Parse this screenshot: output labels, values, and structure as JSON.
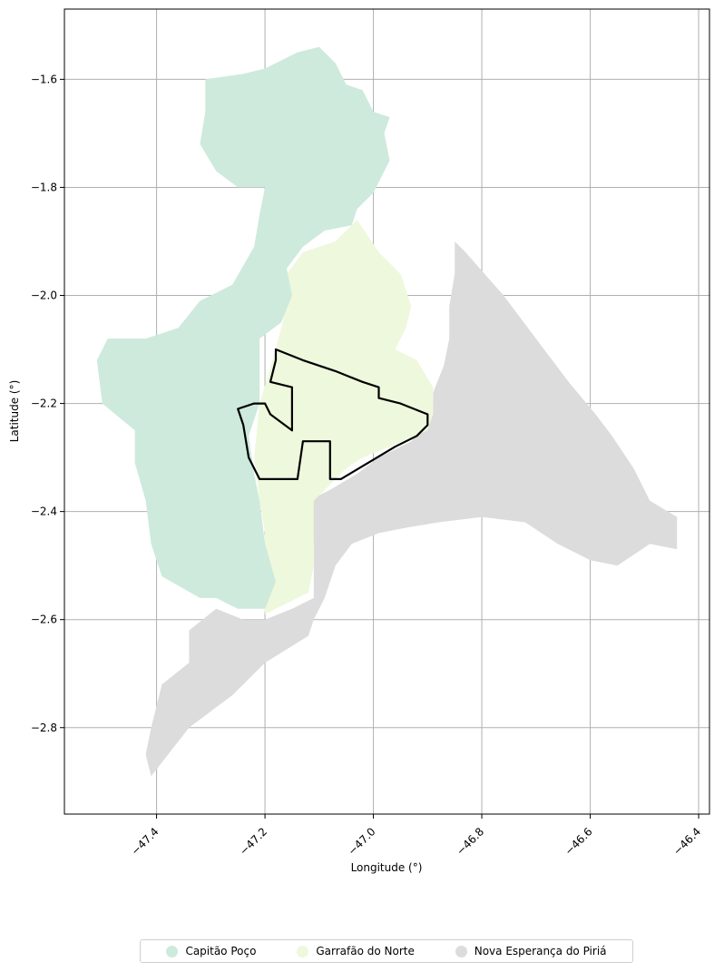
{
  "chart_data": {
    "type": "map",
    "xlabel": "Longitude (°)",
    "ylabel": "Latitude (°)",
    "xlim": [
      -47.57,
      -46.38
    ],
    "ylim": [
      -2.96,
      -1.47
    ],
    "xticks": [
      -47.4,
      -47.2,
      -47.0,
      -46.8,
      -46.6,
      -46.4
    ],
    "xtick_labels": [
      "−47.4",
      "−47.2",
      "−47.0",
      "−46.8",
      "−46.6",
      "−46.4"
    ],
    "yticks": [
      -1.6,
      -1.8,
      -2.0,
      -2.2,
      -2.4,
      -2.6,
      -2.8
    ],
    "ytick_labels": [
      "−1.6",
      "−1.8",
      "−2.0",
      "−2.2",
      "−2.4",
      "−2.6",
      "−2.8"
    ],
    "grid": true,
    "legend_position": "bottom-center",
    "regions": [
      {
        "name": "Capitão Poço",
        "color": "#cdeadd",
        "outline": [
          [
            -47.31,
            -1.6
          ],
          [
            -47.24,
            -1.59
          ],
          [
            -47.2,
            -1.58
          ],
          [
            -47.14,
            -1.55
          ],
          [
            -47.1,
            -1.54
          ],
          [
            -47.07,
            -1.57
          ],
          [
            -47.05,
            -1.61
          ],
          [
            -47.02,
            -1.62
          ],
          [
            -47.0,
            -1.66
          ],
          [
            -46.97,
            -1.67
          ],
          [
            -46.98,
            -1.7
          ],
          [
            -46.97,
            -1.75
          ],
          [
            -47.0,
            -1.81
          ],
          [
            -47.03,
            -1.84
          ],
          [
            -47.04,
            -1.87
          ],
          [
            -47.09,
            -1.88
          ],
          [
            -47.13,
            -1.91
          ],
          [
            -47.16,
            -1.95
          ],
          [
            -47.15,
            -2.0
          ],
          [
            -47.17,
            -2.05
          ],
          [
            -47.21,
            -2.08
          ],
          [
            -47.21,
            -2.2
          ],
          [
            -47.23,
            -2.26
          ],
          [
            -47.22,
            -2.33
          ],
          [
            -47.21,
            -2.38
          ],
          [
            -47.2,
            -2.46
          ],
          [
            -47.18,
            -2.53
          ],
          [
            -47.2,
            -2.58
          ],
          [
            -47.25,
            -2.58
          ],
          [
            -47.29,
            -2.56
          ],
          [
            -47.32,
            -2.56
          ],
          [
            -47.39,
            -2.52
          ],
          [
            -47.41,
            -2.46
          ],
          [
            -47.42,
            -2.38
          ],
          [
            -47.44,
            -2.31
          ],
          [
            -47.44,
            -2.25
          ],
          [
            -47.5,
            -2.2
          ],
          [
            -47.51,
            -2.12
          ],
          [
            -47.49,
            -2.08
          ],
          [
            -47.42,
            -2.08
          ],
          [
            -47.36,
            -2.06
          ],
          [
            -47.32,
            -2.01
          ],
          [
            -47.26,
            -1.98
          ],
          [
            -47.22,
            -1.91
          ],
          [
            -47.21,
            -1.85
          ],
          [
            -47.2,
            -1.8
          ],
          [
            -47.25,
            -1.8
          ],
          [
            -47.29,
            -1.77
          ],
          [
            -47.32,
            -1.72
          ],
          [
            -47.31,
            -1.66
          ]
        ]
      },
      {
        "name": "Garrafão do Norte",
        "color": "#eef8dc",
        "outline": [
          [
            -47.13,
            -1.92
          ],
          [
            -47.07,
            -1.9
          ],
          [
            -47.03,
            -1.86
          ],
          [
            -46.99,
            -1.92
          ],
          [
            -46.95,
            -1.96
          ],
          [
            -46.93,
            -2.02
          ],
          [
            -46.94,
            -2.06
          ],
          [
            -46.96,
            -2.1
          ],
          [
            -46.92,
            -2.12
          ],
          [
            -46.89,
            -2.17
          ],
          [
            -46.89,
            -2.22
          ],
          [
            -46.9,
            -2.25
          ],
          [
            -46.97,
            -2.28
          ],
          [
            -47.02,
            -2.3
          ],
          [
            -47.05,
            -2.32
          ],
          [
            -47.08,
            -2.35
          ],
          [
            -47.11,
            -2.38
          ],
          [
            -47.11,
            -2.44
          ],
          [
            -47.11,
            -2.5
          ],
          [
            -47.12,
            -2.55
          ],
          [
            -47.16,
            -2.57
          ],
          [
            -47.2,
            -2.59
          ],
          [
            -47.21,
            -2.5
          ],
          [
            -47.2,
            -2.44
          ],
          [
            -47.21,
            -2.38
          ],
          [
            -47.22,
            -2.3
          ],
          [
            -47.21,
            -2.2
          ],
          [
            -47.18,
            -2.1
          ],
          [
            -47.16,
            -2.02
          ],
          [
            -47.16,
            -1.96
          ]
        ]
      },
      {
        "name": "Nova Esperança do Piriá",
        "color": "#dcdcdc",
        "outline": [
          [
            -46.85,
            -1.9
          ],
          [
            -46.83,
            -1.92
          ],
          [
            -46.76,
            -2.0
          ],
          [
            -46.7,
            -2.08
          ],
          [
            -46.64,
            -2.16
          ],
          [
            -46.59,
            -2.22
          ],
          [
            -46.56,
            -2.26
          ],
          [
            -46.52,
            -2.32
          ],
          [
            -46.49,
            -2.38
          ],
          [
            -46.44,
            -2.41
          ],
          [
            -46.44,
            -2.47
          ],
          [
            -46.49,
            -2.46
          ],
          [
            -46.52,
            -2.48
          ],
          [
            -46.55,
            -2.5
          ],
          [
            -46.6,
            -2.49
          ],
          [
            -46.66,
            -2.46
          ],
          [
            -46.72,
            -2.42
          ],
          [
            -46.8,
            -2.41
          ],
          [
            -46.88,
            -2.42
          ],
          [
            -46.94,
            -2.43
          ],
          [
            -46.99,
            -2.44
          ],
          [
            -47.04,
            -2.46
          ],
          [
            -47.07,
            -2.5
          ],
          [
            -47.09,
            -2.56
          ],
          [
            -47.11,
            -2.6
          ],
          [
            -47.12,
            -2.63
          ],
          [
            -47.2,
            -2.68
          ],
          [
            -47.26,
            -2.74
          ],
          [
            -47.34,
            -2.8
          ],
          [
            -47.41,
            -2.89
          ],
          [
            -47.42,
            -2.85
          ],
          [
            -47.41,
            -2.8
          ],
          [
            -47.39,
            -2.72
          ],
          [
            -47.34,
            -2.68
          ],
          [
            -47.34,
            -2.62
          ],
          [
            -47.29,
            -2.58
          ],
          [
            -47.24,
            -2.6
          ],
          [
            -47.2,
            -2.6
          ],
          [
            -47.15,
            -2.58
          ],
          [
            -47.11,
            -2.56
          ],
          [
            -47.11,
            -2.46
          ],
          [
            -47.12,
            -2.38
          ],
          [
            -47.08,
            -2.36
          ],
          [
            -47.03,
            -2.33
          ],
          [
            -46.99,
            -2.3
          ],
          [
            -46.93,
            -2.27
          ],
          [
            -46.89,
            -2.22
          ],
          [
            -46.89,
            -2.18
          ],
          [
            -46.87,
            -2.13
          ],
          [
            -46.86,
            -2.08
          ],
          [
            -46.86,
            -2.02
          ],
          [
            -46.85,
            -1.96
          ]
        ]
      }
    ],
    "boundary": {
      "stroke": "#000000",
      "outline": [
        [
          -47.18,
          -2.1
        ],
        [
          -47.13,
          -2.12
        ],
        [
          -47.07,
          -2.14
        ],
        [
          -47.02,
          -2.16
        ],
        [
          -46.99,
          -2.17
        ],
        [
          -46.99,
          -2.19
        ],
        [
          -46.95,
          -2.2
        ],
        [
          -46.9,
          -2.22
        ],
        [
          -46.9,
          -2.24
        ],
        [
          -46.92,
          -2.26
        ],
        [
          -46.96,
          -2.28
        ],
        [
          -47.01,
          -2.31
        ],
        [
          -47.06,
          -2.34
        ],
        [
          -47.08,
          -2.34
        ],
        [
          -47.08,
          -2.27
        ],
        [
          -47.13,
          -2.27
        ],
        [
          -47.14,
          -2.34
        ],
        [
          -47.21,
          -2.34
        ],
        [
          -47.23,
          -2.3
        ],
        [
          -47.24,
          -2.24
        ],
        [
          -47.25,
          -2.21
        ],
        [
          -47.22,
          -2.2
        ],
        [
          -47.2,
          -2.2
        ],
        [
          -47.19,
          -2.22
        ],
        [
          -47.15,
          -2.25
        ],
        [
          -47.15,
          -2.17
        ],
        [
          -47.19,
          -2.16
        ],
        [
          -47.18,
          -2.12
        ]
      ]
    }
  },
  "legend": {
    "items": [
      {
        "label": "Capitão Poço",
        "color": "#cdeadd"
      },
      {
        "label": "Garrafão do Norte",
        "color": "#eef8dc"
      },
      {
        "label": "Nova Esperança do Piriá",
        "color": "#dcdcdc"
      }
    ]
  }
}
